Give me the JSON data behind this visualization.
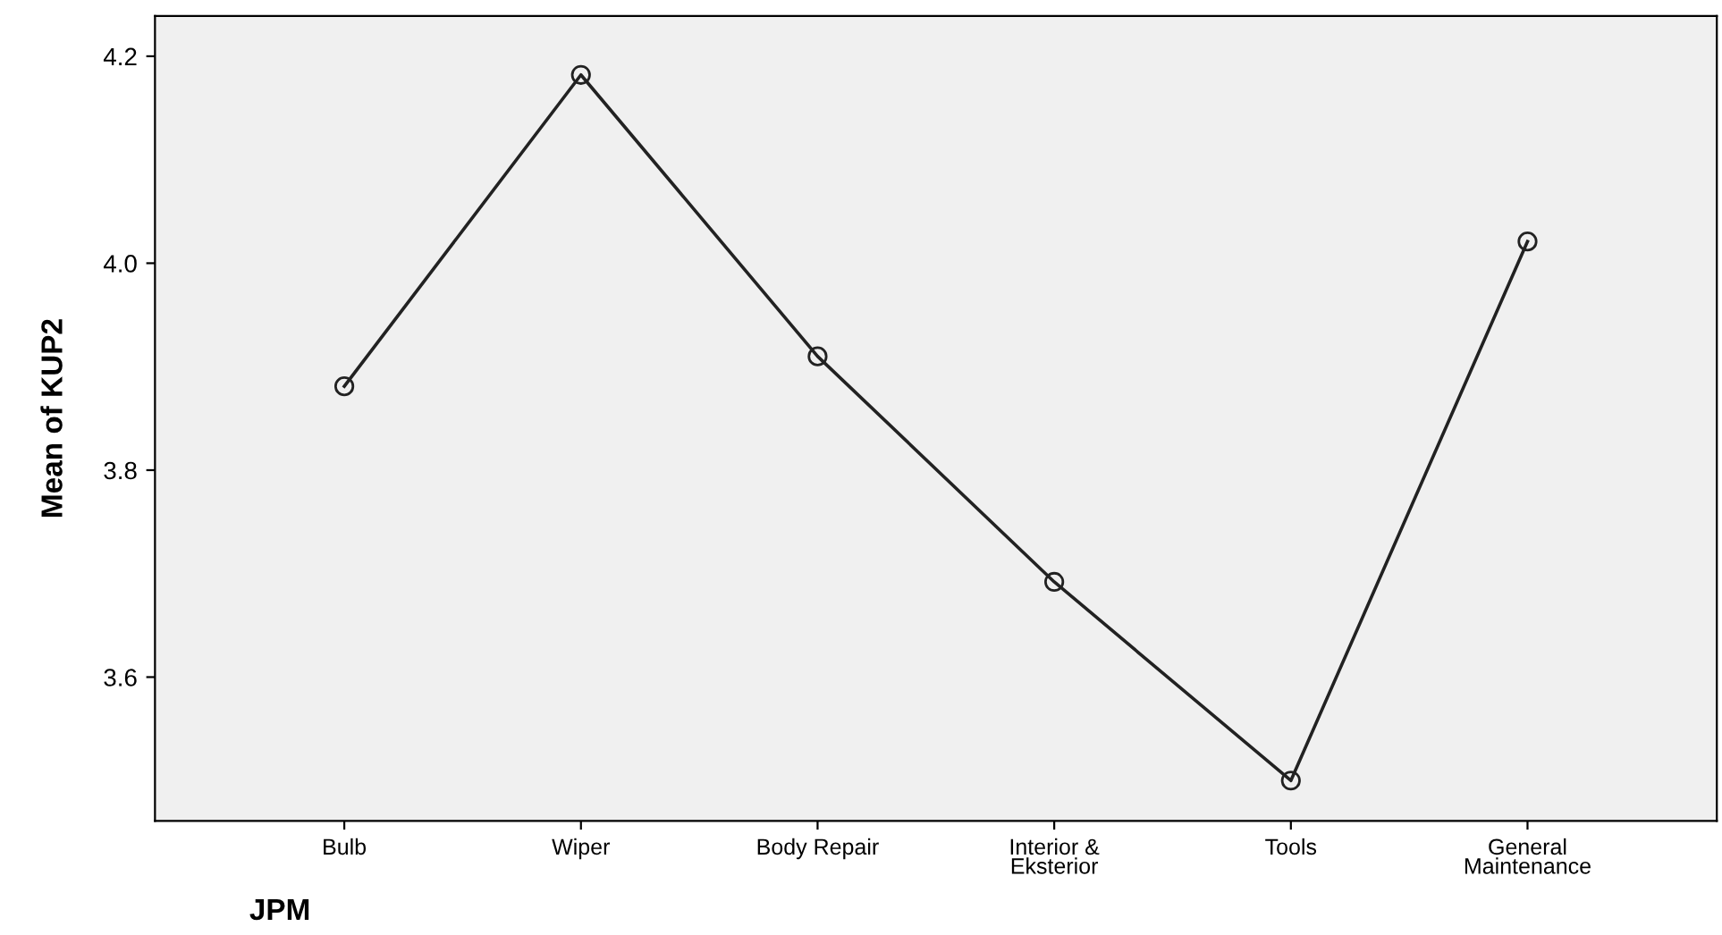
{
  "chart_data": {
    "type": "line",
    "xlabel": "JPM",
    "ylabel": "Mean of KUP2",
    "categories": [
      "Bulb",
      "Wiper",
      "Body Repair",
      "Interior &\nEksterior",
      "Tools",
      "General\nMaintenance"
    ],
    "series": [
      {
        "color": "#222222",
        "values": [
          3.881,
          4.182,
          3.91,
          3.692,
          3.5,
          4.021
        ]
      }
    ],
    "ylim": [
      3.461,
      4.239
    ],
    "yticks": [
      {
        "value": 3.6,
        "label": "3.6"
      },
      {
        "value": 3.8,
        "label": "3.8"
      },
      {
        "value": 4.0,
        "label": "4.0"
      },
      {
        "value": 4.2,
        "label": "4.2"
      }
    ],
    "grid": false,
    "legend": false,
    "marker": "circle",
    "line_style": "solid"
  }
}
